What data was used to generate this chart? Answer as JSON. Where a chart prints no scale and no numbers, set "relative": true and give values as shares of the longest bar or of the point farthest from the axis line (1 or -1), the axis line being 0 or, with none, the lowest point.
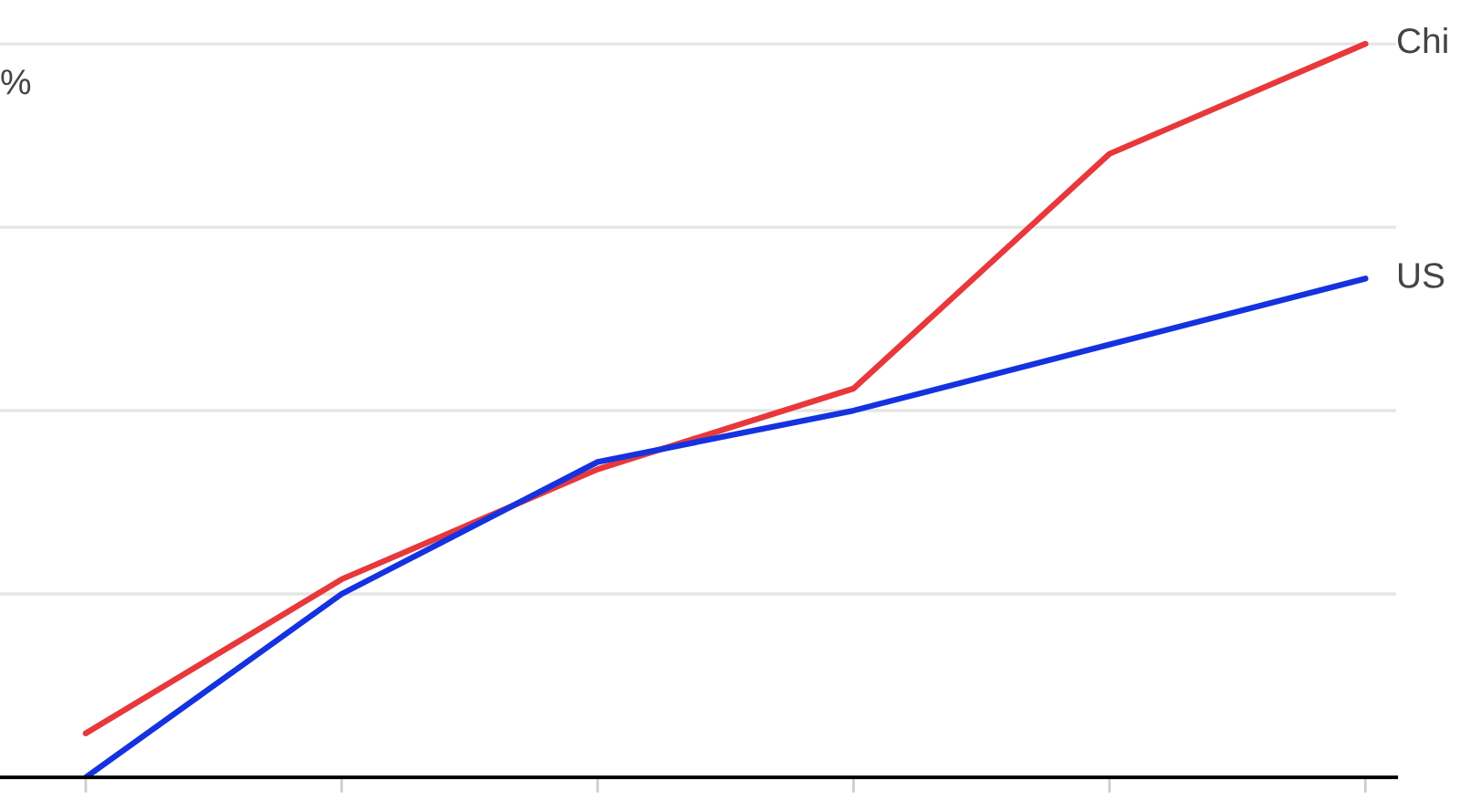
{
  "chart_data": {
    "type": "line",
    "relative": true,
    "ylabel": "%",
    "categories": [
      null,
      null,
      null,
      null,
      null,
      null
    ],
    "series": [
      {
        "name": "Chi",
        "color": "#e8383b",
        "values": [
          0.06,
          0.27,
          0.42,
          0.53,
          0.85,
          1.0
        ]
      },
      {
        "name": "US",
        "color": "#1532e0",
        "values": [
          0.0,
          0.25,
          0.43,
          0.5,
          0.59,
          0.68
        ]
      }
    ],
    "grid": "y",
    "tick_labels": false,
    "legend": false,
    "marker": "none",
    "line_style": "solid"
  }
}
